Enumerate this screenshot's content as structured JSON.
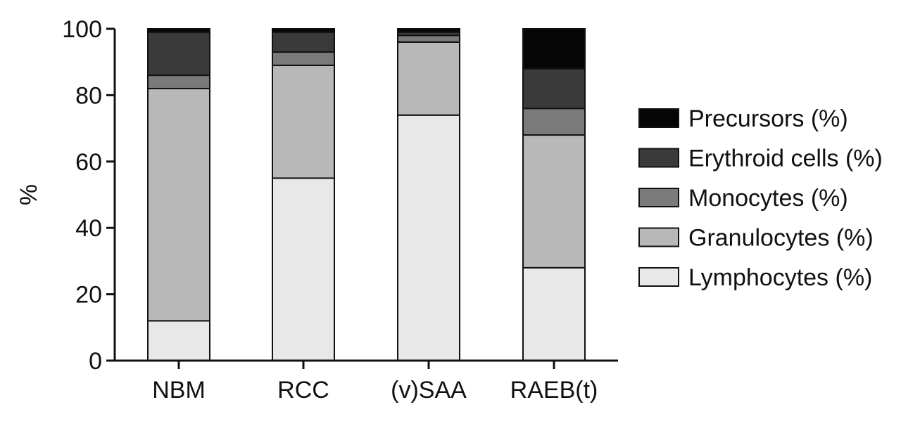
{
  "chart_data": {
    "type": "bar",
    "stacked": true,
    "categories": [
      "NBM",
      "RCC",
      "(v)SAA",
      "RAEB(t)"
    ],
    "series": [
      {
        "name": "Lymphocytes (%)",
        "color": "#e8e8e8",
        "values": [
          12,
          55,
          74,
          28
        ]
      },
      {
        "name": "Granulocytes (%)",
        "color": "#b8b8b8",
        "values": [
          70,
          34,
          22,
          40
        ]
      },
      {
        "name": "Monocytes (%)",
        "color": "#7a7a7a",
        "values": [
          4,
          4,
          2,
          8
        ]
      },
      {
        "name": "Erythroid cells (%)",
        "color": "#3a3a3a",
        "values": [
          13,
          6,
          1,
          12
        ]
      },
      {
        "name": "Precursors (%)",
        "color": "#050505",
        "values": [
          1,
          1,
          1,
          12
        ]
      }
    ],
    "legend_order": [
      "Precursors (%)",
      "Erythroid cells (%)",
      "Monocytes (%)",
      "Granulocytes (%)",
      "Lymphocytes (%)"
    ],
    "ylabel": "%",
    "xlabel": "",
    "ylim": [
      0,
      100
    ],
    "yticks": [
      "0",
      "20",
      "40",
      "60",
      "80",
      "100"
    ],
    "grid": false,
    "legend_position": "right"
  }
}
